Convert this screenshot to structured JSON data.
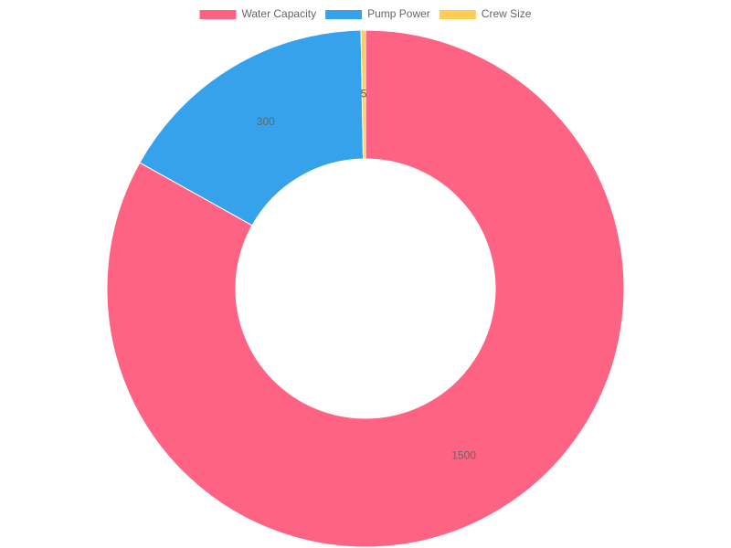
{
  "chart_data": {
    "type": "doughnut",
    "categories": [
      "Water Capacity",
      "Pump Power",
      "Crew Size"
    ],
    "values": [
      1500,
      300,
      5
    ],
    "colors": [
      "#ff6384",
      "#36a2eb",
      "#ffcd56"
    ],
    "legend": "top"
  }
}
